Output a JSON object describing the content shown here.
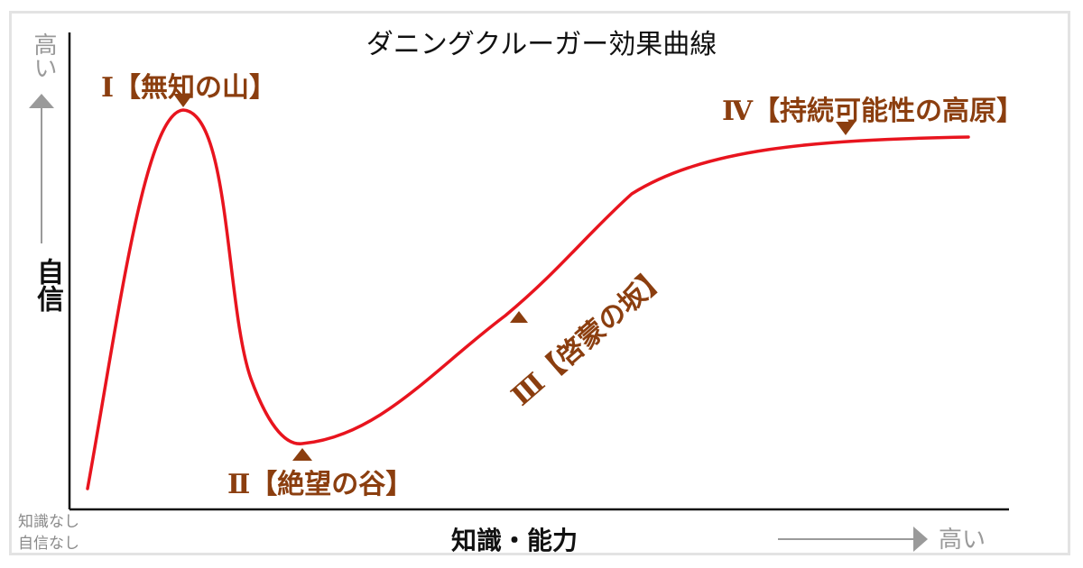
{
  "diagram": {
    "title": "ダニングクルーガー効果曲線",
    "y_axis": {
      "label": "自信",
      "high_label": "高い"
    },
    "x_axis": {
      "label": "知識・能力",
      "high_label": "高い"
    },
    "origin_labels": {
      "line1": "知識なし",
      "line2": "自信なし"
    },
    "stages": [
      {
        "id": "peak",
        "label": "Ⅰ【無知の山】"
      },
      {
        "id": "valley",
        "label": "Ⅱ【絶望の谷】"
      },
      {
        "id": "slope",
        "label": "Ⅲ【啓蒙の坂】"
      },
      {
        "id": "plateau",
        "label": "Ⅳ【持続可能性の高原】"
      }
    ],
    "colors": {
      "curve": "#e8141e",
      "stage_text": "#8b3e0f",
      "marker": "#8b3e0f",
      "axis": "#111111",
      "muted": "#9a9a9a"
    }
  }
}
